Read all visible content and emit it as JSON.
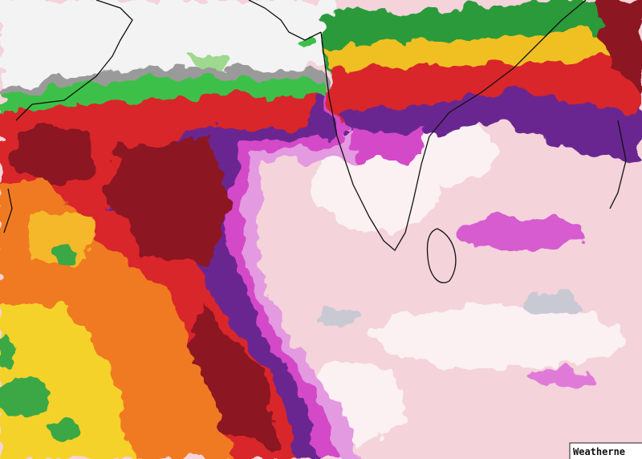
{
  "watermark": "Weatherne"
}
